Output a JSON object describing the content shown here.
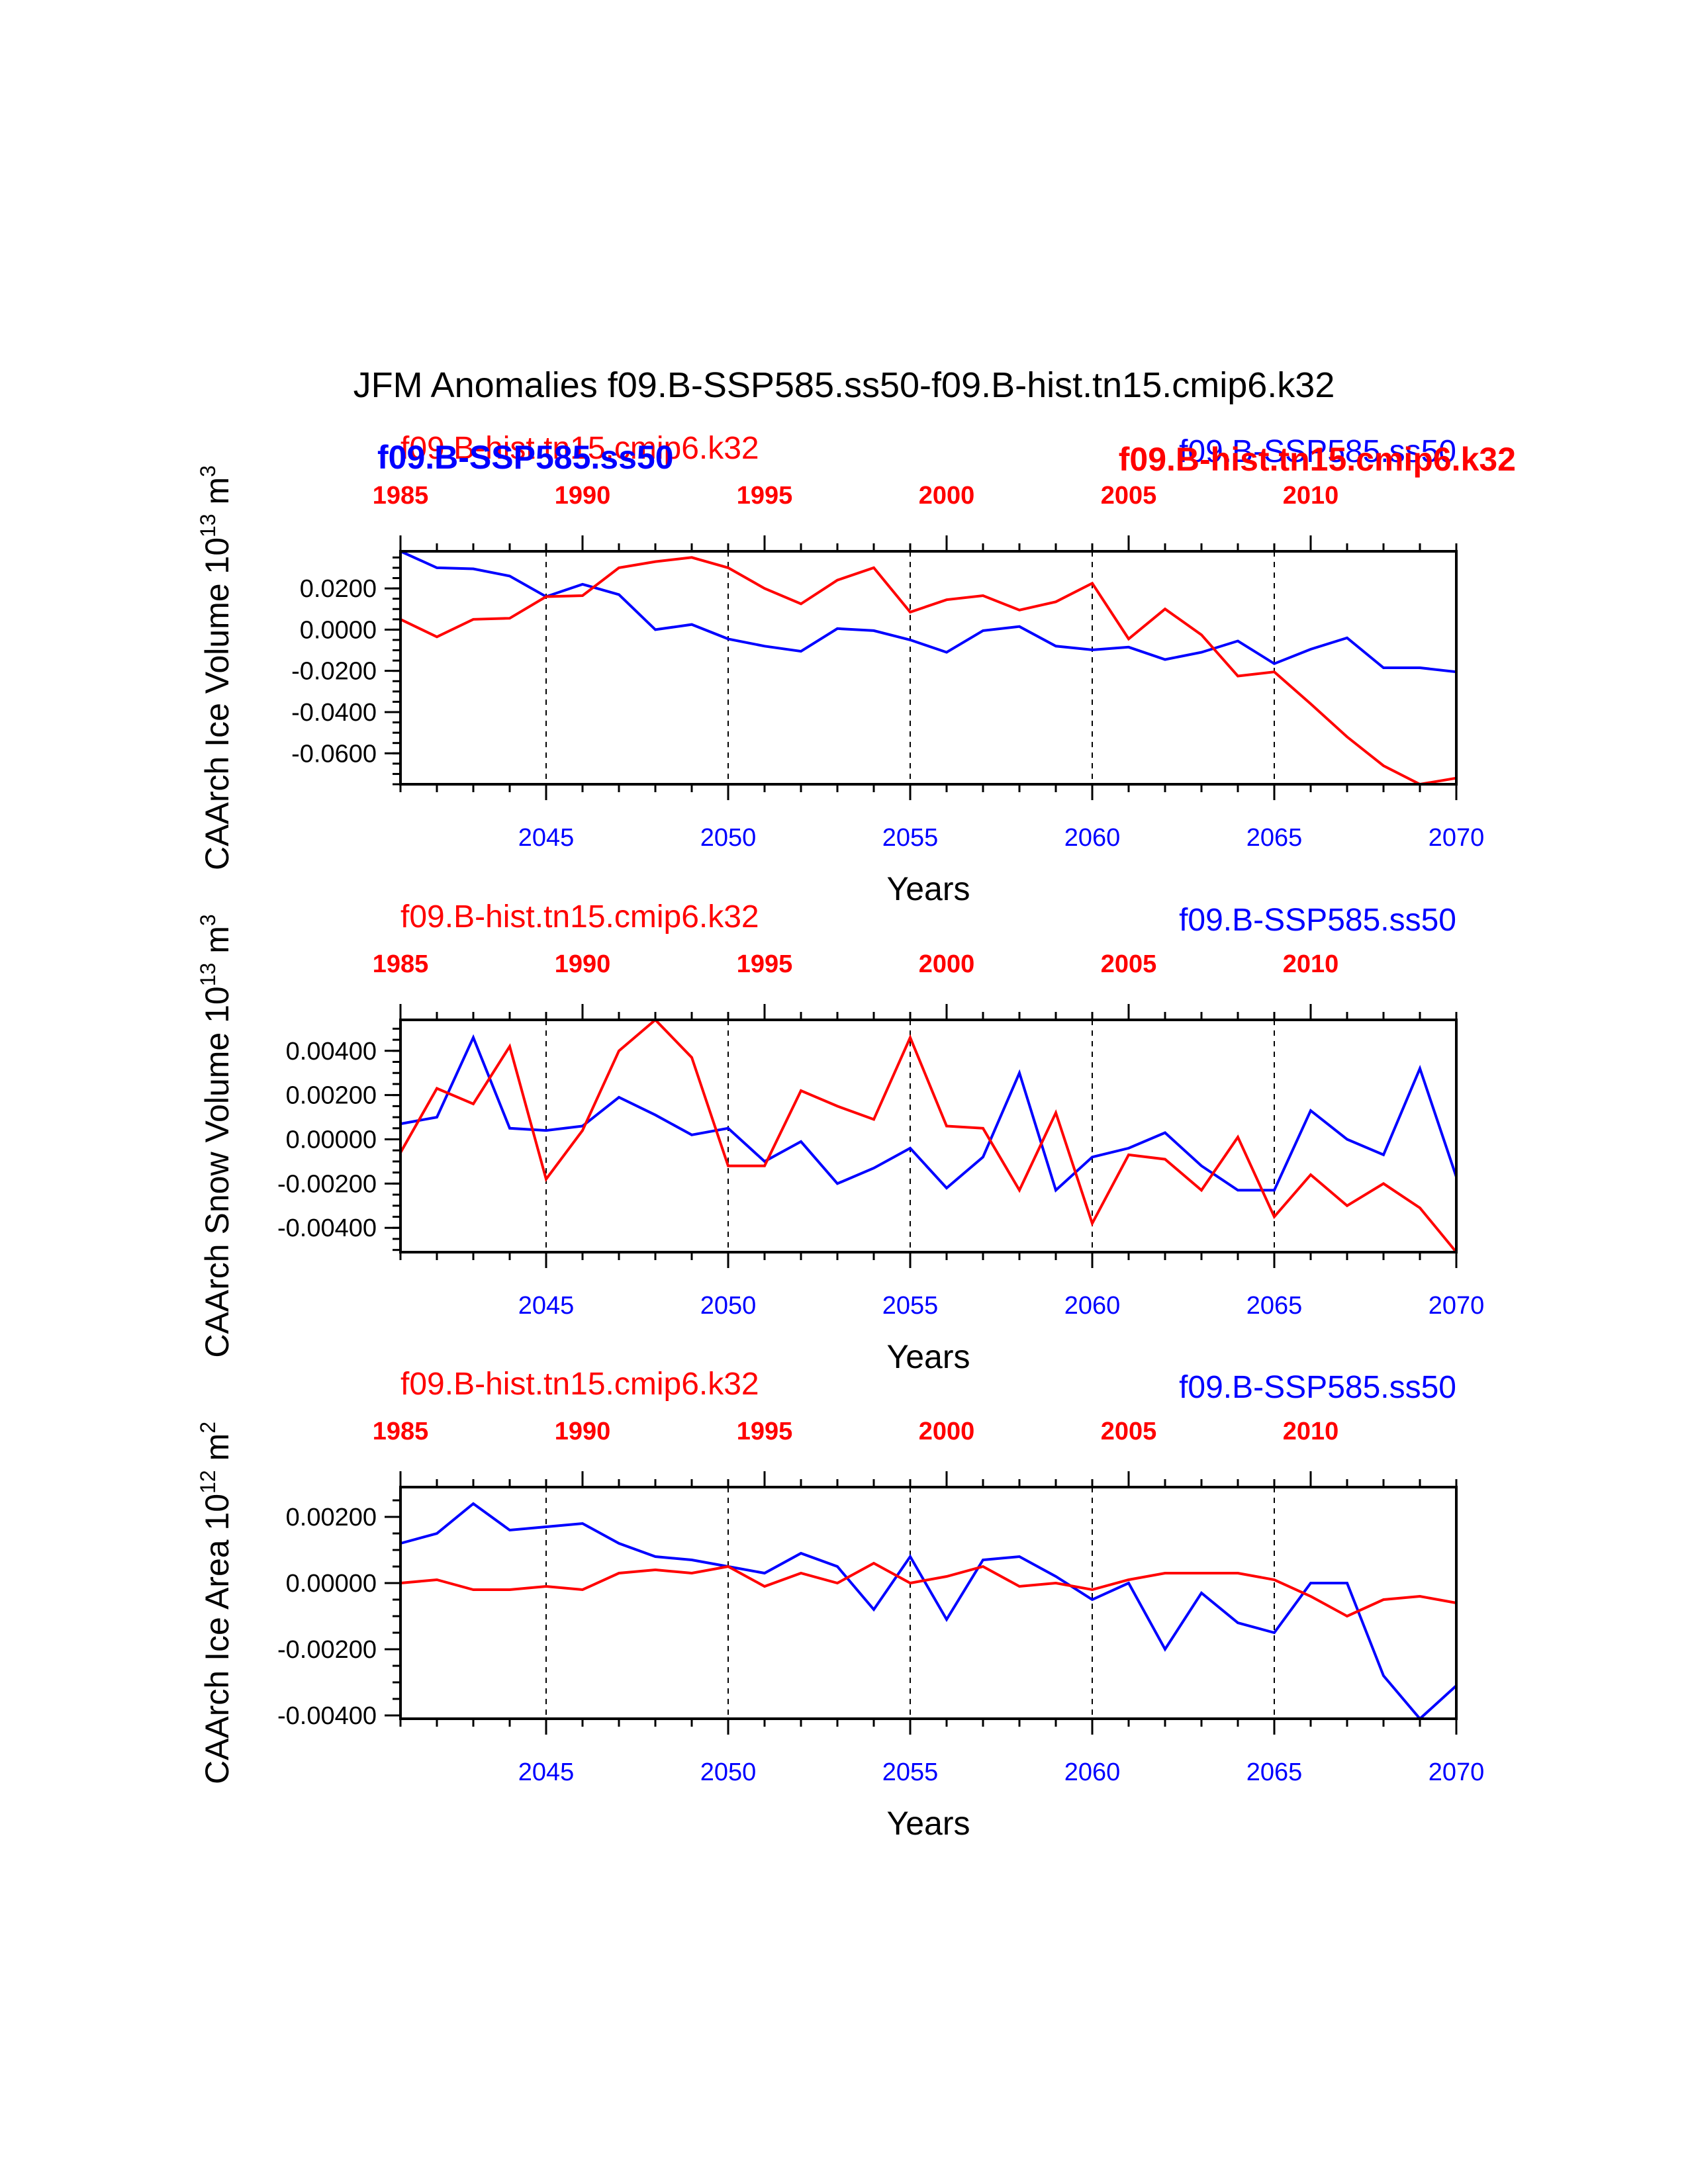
{
  "title": "JFM Anomalies f09.B-SSP585.ss50-f09.B-hist.tn15.cmip6.k32",
  "colors": {
    "ssp": "#0000ff",
    "hist": "#ff0000",
    "axis": "#000000"
  },
  "xlabel": "Years",
  "chart_data": [
    {
      "type": "line",
      "ylabel": "CAArch Ice Volume 10",
      "ylabel_exp": "13",
      "ylabel_unit": " m",
      "ylabel_unit_exp": "3",
      "ylim": [
        -0.075,
        0.038
      ],
      "yticks": [
        0.02,
        0.0,
        -0.02,
        -0.04,
        -0.06
      ],
      "ytick_labels": [
        "0.0200",
        "0.0000",
        "-0.0200",
        "-0.0400",
        "-0.0600"
      ],
      "yminor": 0.005,
      "bottom_x_range": [
        2041,
        2070
      ],
      "bottom_ticks": [
        2045,
        2050,
        2055,
        2060,
        2065,
        2070
      ],
      "bottom_tick_labels": [
        "2045",
        "2050",
        "2055",
        "2060",
        "2065",
        "2070"
      ],
      "top_x_range": [
        1985,
        2014
      ],
      "top_ticks": [
        1985,
        1990,
        1995,
        2000,
        2005,
        2010
      ],
      "top_tick_labels": [
        "1985",
        "1990",
        "1995",
        "2000",
        "2005",
        "2010"
      ],
      "dashed_x": [
        2045,
        2050,
        2055,
        2060,
        2065
      ],
      "legend_labels": [
        {
          "text": "f09.B-hist.tn15.cmip6.k32",
          "series": "hist",
          "style": "plain",
          "pos": "top-left"
        },
        {
          "text": "f09.B-SSP585.ss50",
          "series": "ssp",
          "style": "bold",
          "pos": "top-left"
        },
        {
          "text": "f09.B-SSP585.ss50",
          "series": "ssp",
          "style": "plain",
          "pos": "top-right"
        },
        {
          "text": "f09.B-hist.tn15.cmip6.k32",
          "series": "hist",
          "style": "bold",
          "pos": "top-right"
        }
      ],
      "series": [
        {
          "name": "f09.B-SSP585.ss50",
          "color": "ssp",
          "values": [
            0.038,
            0.03,
            0.0295,
            0.026,
            0.016,
            0.022,
            0.017,
            0.0,
            0.0025,
            -0.0045,
            -0.008,
            -0.0105,
            0.0005,
            -0.0005,
            -0.005,
            -0.011,
            -0.0005,
            0.0015,
            -0.008,
            -0.0098,
            -0.0085,
            -0.0145,
            -0.011,
            -0.0055,
            -0.0165,
            -0.0095,
            -0.004,
            -0.0185,
            -0.0185,
            -0.0205
          ]
        },
        {
          "name": "f09.B-hist.tn15.cmip6.k32",
          "color": "hist",
          "values": [
            0.005,
            -0.0035,
            0.005,
            0.0055,
            0.016,
            0.0165,
            0.03,
            0.033,
            0.035,
            0.03,
            0.02,
            0.0125,
            0.024,
            0.03,
            0.0085,
            0.0145,
            0.0165,
            0.0095,
            0.0135,
            0.0225,
            -0.0045,
            0.01,
            -0.0025,
            -0.0225,
            -0.0205,
            -0.036,
            -0.052,
            -0.066,
            -0.075,
            -0.072
          ]
        }
      ]
    },
    {
      "type": "line",
      "ylabel": "CAArch Snow Volume 10",
      "ylabel_exp": "13",
      "ylabel_unit": " m",
      "ylabel_unit_exp": "3",
      "ylim": [
        -0.0051,
        0.0054
      ],
      "yticks": [
        0.004,
        0.002,
        0.0,
        -0.002,
        -0.004
      ],
      "ytick_labels": [
        "0.00400",
        "0.00200",
        "0.00000",
        "-0.00200",
        "-0.00400"
      ],
      "yminor": 0.0005,
      "bottom_x_range": [
        2041,
        2070
      ],
      "bottom_ticks": [
        2045,
        2050,
        2055,
        2060,
        2065,
        2070
      ],
      "bottom_tick_labels": [
        "2045",
        "2050",
        "2055",
        "2060",
        "2065",
        "2070"
      ],
      "top_x_range": [
        1985,
        2014
      ],
      "top_ticks": [
        1985,
        1990,
        1995,
        2000,
        2005,
        2010
      ],
      "top_tick_labels": [
        "1985",
        "1990",
        "1995",
        "2000",
        "2005",
        "2010"
      ],
      "dashed_x": [
        2045,
        2050,
        2055,
        2060,
        2065
      ],
      "legend_labels": [
        {
          "text": "f09.B-hist.tn15.cmip6.k32",
          "series": "hist",
          "style": "plain",
          "pos": "top-left"
        },
        {
          "text": "f09.B-SSP585.ss50",
          "series": "ssp",
          "style": "plain",
          "pos": "top-right"
        }
      ],
      "series": [
        {
          "name": "f09.B-SSP585.ss50",
          "color": "ssp",
          "values": [
            0.0007,
            0.001,
            0.0046,
            0.0005,
            0.0004,
            0.0006,
            0.0019,
            0.0011,
            0.0002,
            0.0005,
            -0.001,
            -0.0001,
            -0.002,
            -0.0013,
            -0.0004,
            -0.0022,
            -0.0008,
            0.003,
            -0.0023,
            -0.0008,
            -0.0004,
            0.0003,
            -0.0012,
            -0.0023,
            -0.0023,
            0.0013,
            0.0,
            -0.0007,
            0.0032,
            -0.0017
          ]
        },
        {
          "name": "f09.B-hist.tn15.cmip6.k32",
          "color": "hist",
          "values": [
            -0.0006,
            0.0023,
            0.0016,
            0.0042,
            -0.0018,
            0.0004,
            0.004,
            0.0054,
            0.0037,
            -0.0012,
            -0.0012,
            0.0022,
            0.0015,
            0.0009,
            0.0046,
            0.0006,
            0.0005,
            -0.0023,
            0.0012,
            -0.0038,
            -0.0007,
            -0.0009,
            -0.0023,
            0.0001,
            -0.0035,
            -0.0016,
            -0.003,
            -0.002,
            -0.0031,
            -0.0051
          ]
        }
      ]
    },
    {
      "type": "line",
      "ylabel": "CAArch Ice Area 10",
      "ylabel_exp": "12",
      "ylabel_unit": " m",
      "ylabel_unit_exp": "2",
      "ylim": [
        -0.0041,
        0.0029
      ],
      "yticks": [
        0.002,
        0.0,
        -0.002,
        -0.004
      ],
      "ytick_labels": [
        "0.00200",
        "0.00000",
        "-0.00200",
        "-0.00400"
      ],
      "yminor": 0.0005,
      "bottom_x_range": [
        2041,
        2070
      ],
      "bottom_ticks": [
        2045,
        2050,
        2055,
        2060,
        2065,
        2070
      ],
      "bottom_tick_labels": [
        "2045",
        "2050",
        "2055",
        "2060",
        "2065",
        "2070"
      ],
      "top_x_range": [
        1985,
        2014
      ],
      "top_ticks": [
        1985,
        1990,
        1995,
        2000,
        2005,
        2010
      ],
      "top_tick_labels": [
        "1985",
        "1990",
        "1995",
        "2000",
        "2005",
        "2010"
      ],
      "dashed_x": [
        2045,
        2050,
        2055,
        2060,
        2065
      ],
      "legend_labels": [
        {
          "text": "f09.B-hist.tn15.cmip6.k32",
          "series": "hist",
          "style": "plain",
          "pos": "top-left"
        },
        {
          "text": "f09.B-SSP585.ss50",
          "series": "ssp",
          "style": "plain",
          "pos": "top-right"
        }
      ],
      "series": [
        {
          "name": "f09.B-SSP585.ss50",
          "color": "ssp",
          "values": [
            0.0012,
            0.0015,
            0.0024,
            0.0016,
            0.0017,
            0.0018,
            0.0012,
            0.0008,
            0.0007,
            0.0005,
            0.0003,
            0.0009,
            0.0005,
            -0.0008,
            0.0008,
            -0.0011,
            0.0007,
            0.0008,
            0.0002,
            -0.0005,
            0.0,
            -0.002,
            -0.0003,
            -0.0012,
            -0.0015,
            0.0,
            0.0,
            -0.0028,
            -0.0041,
            -0.0031
          ]
        },
        {
          "name": "f09.B-hist.tn15.cmip6.k32",
          "color": "hist",
          "values": [
            0.0,
            0.0001,
            -0.0002,
            -0.0002,
            -0.0001,
            -0.0002,
            0.0003,
            0.0004,
            0.0003,
            0.0005,
            -0.0001,
            0.0003,
            0.0,
            0.0006,
            0.0,
            0.0002,
            0.0005,
            -0.0001,
            0.0,
            -0.0002,
            0.0001,
            0.0003,
            0.0003,
            0.0003,
            0.0001,
            -0.0004,
            -0.001,
            -0.0005,
            -0.0004,
            -0.0006
          ]
        }
      ]
    }
  ]
}
